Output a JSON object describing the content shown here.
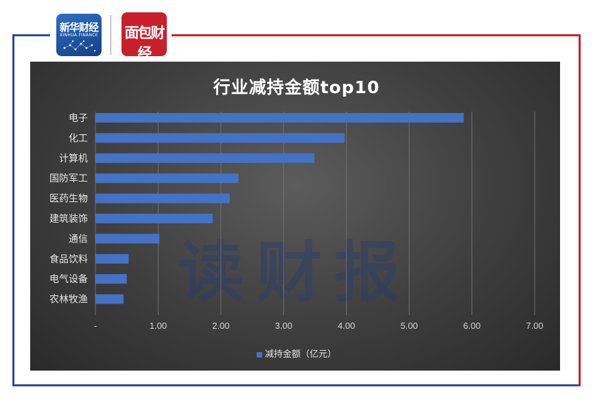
{
  "logos": {
    "xinhua": {
      "title": "新华财经",
      "subtitle": "XINHUA FINANCE"
    },
    "mianbao": {
      "title": "面包财经"
    }
  },
  "watermark": "读财报",
  "chart_data": {
    "type": "bar",
    "orientation": "horizontal",
    "title": "行业减持金额top10",
    "categories": [
      "电子",
      "化工",
      "计算机",
      "国防军工",
      "医药生物",
      "建筑装饰",
      "通信",
      "食品饮料",
      "电气设备",
      "农林牧渔"
    ],
    "series": [
      {
        "name": "减持金额（亿元）",
        "values": [
          5.87,
          3.97,
          3.49,
          2.28,
          2.14,
          1.87,
          1.02,
          0.53,
          0.5,
          0.45
        ]
      }
    ],
    "xticks": [
      "-",
      "1.00",
      "2.00",
      "3.00",
      "4.00",
      "5.00",
      "6.00",
      "7.00"
    ],
    "xlim": [
      0,
      7
    ],
    "grid": "vertical",
    "legend_position": "bottom",
    "bar_color": "#4472c4"
  }
}
